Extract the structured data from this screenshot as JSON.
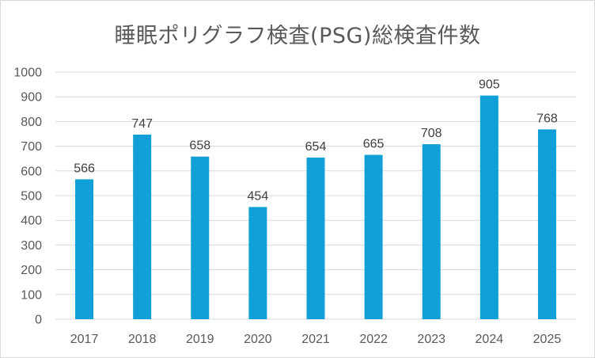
{
  "chart_data": {
    "type": "bar",
    "title": "睡眠ポリグラフ検査(PSG)総検査件数",
    "categories": [
      "2017",
      "2018",
      "2019",
      "2020",
      "2021",
      "2022",
      "2023",
      "2024",
      "2025"
    ],
    "values": [
      566,
      747,
      658,
      454,
      654,
      665,
      708,
      905,
      768
    ],
    "data_labels": [
      "566",
      "747",
      "658",
      "454",
      "654",
      "665",
      "708",
      "905",
      "768"
    ],
    "ylim": [
      0,
      1000
    ],
    "yticks": [
      "0",
      "100",
      "200",
      "300",
      "400",
      "500",
      "600",
      "700",
      "800",
      "900",
      "1000"
    ],
    "xlabel": "",
    "ylabel": "",
    "grid": true,
    "legend": "none",
    "bar_color": "#109fd6",
    "grid_color": "#d9d9d9"
  }
}
